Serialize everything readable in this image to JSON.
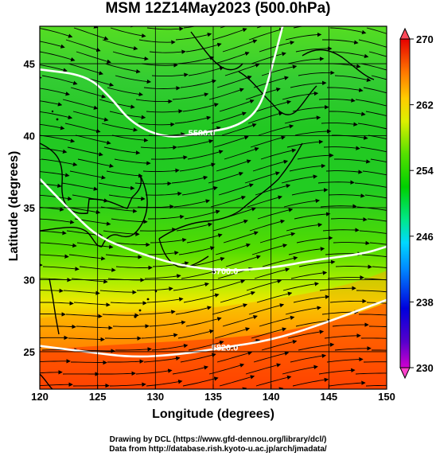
{
  "title": "MSM 12Z14May2023 (500.0hPa)",
  "x_axis": {
    "label": "Longitude (degrees)",
    "ticks": [
      "120",
      "125",
      "130",
      "135",
      "140",
      "145",
      "150"
    ],
    "range": [
      120,
      150
    ]
  },
  "y_axis": {
    "label": "Latitude  (degrees)",
    "ticks": [
      "25",
      "30",
      "35",
      "40",
      "45"
    ],
    "range": [
      22.4,
      47.6
    ]
  },
  "colorbar": {
    "ticks": [
      "230",
      "238",
      "246",
      "254",
      "262",
      "270"
    ],
    "range": [
      230,
      270
    ],
    "colors": [
      "#d000d0",
      "#5500cc",
      "#0000dd",
      "#0088ff",
      "#00d8ff",
      "#00e88a",
      "#00d000",
      "#55e000",
      "#ddf000",
      "#ffcc00",
      "#ff7700",
      "#ff2a00",
      "#e60000"
    ]
  },
  "contours": [
    {
      "label": "5580.0",
      "lat_at_lon": [
        [
          120,
          44.6
        ],
        [
          124,
          44.2
        ],
        [
          126,
          42.8
        ],
        [
          128,
          40.8
        ],
        [
          131,
          39.8
        ],
        [
          134,
          40.2
        ],
        [
          137,
          40.6
        ],
        [
          139,
          41.8
        ],
        [
          140,
          44.5
        ],
        [
          141,
          47.6
        ]
      ]
    },
    {
      "label": "5700.0",
      "lat_at_lon": [
        [
          120,
          37.0
        ],
        [
          123,
          34.5
        ],
        [
          125,
          33.0
        ],
        [
          128,
          32.0
        ],
        [
          132,
          31.0
        ],
        [
          136,
          30.6
        ],
        [
          140,
          30.8
        ],
        [
          144,
          31.4
        ],
        [
          148,
          31.8
        ],
        [
          150,
          32.3
        ]
      ]
    },
    {
      "label": "5820.0",
      "lat_at_lon": [
        [
          120,
          25.4
        ],
        [
          124,
          25.0
        ],
        [
          128,
          24.6
        ],
        [
          132,
          24.8
        ],
        [
          136,
          25.3
        ],
        [
          140,
          25.8
        ],
        [
          144,
          26.8
        ],
        [
          148,
          28.0
        ],
        [
          150,
          28.6
        ]
      ]
    }
  ],
  "credits": {
    "line1": "Drawing by DCL (https://www.gfd-dennou.org/library/dcl/)",
    "line2": "Data from http://database.rish.kyoto-u.ac.jp/arch/jmadata/"
  }
}
